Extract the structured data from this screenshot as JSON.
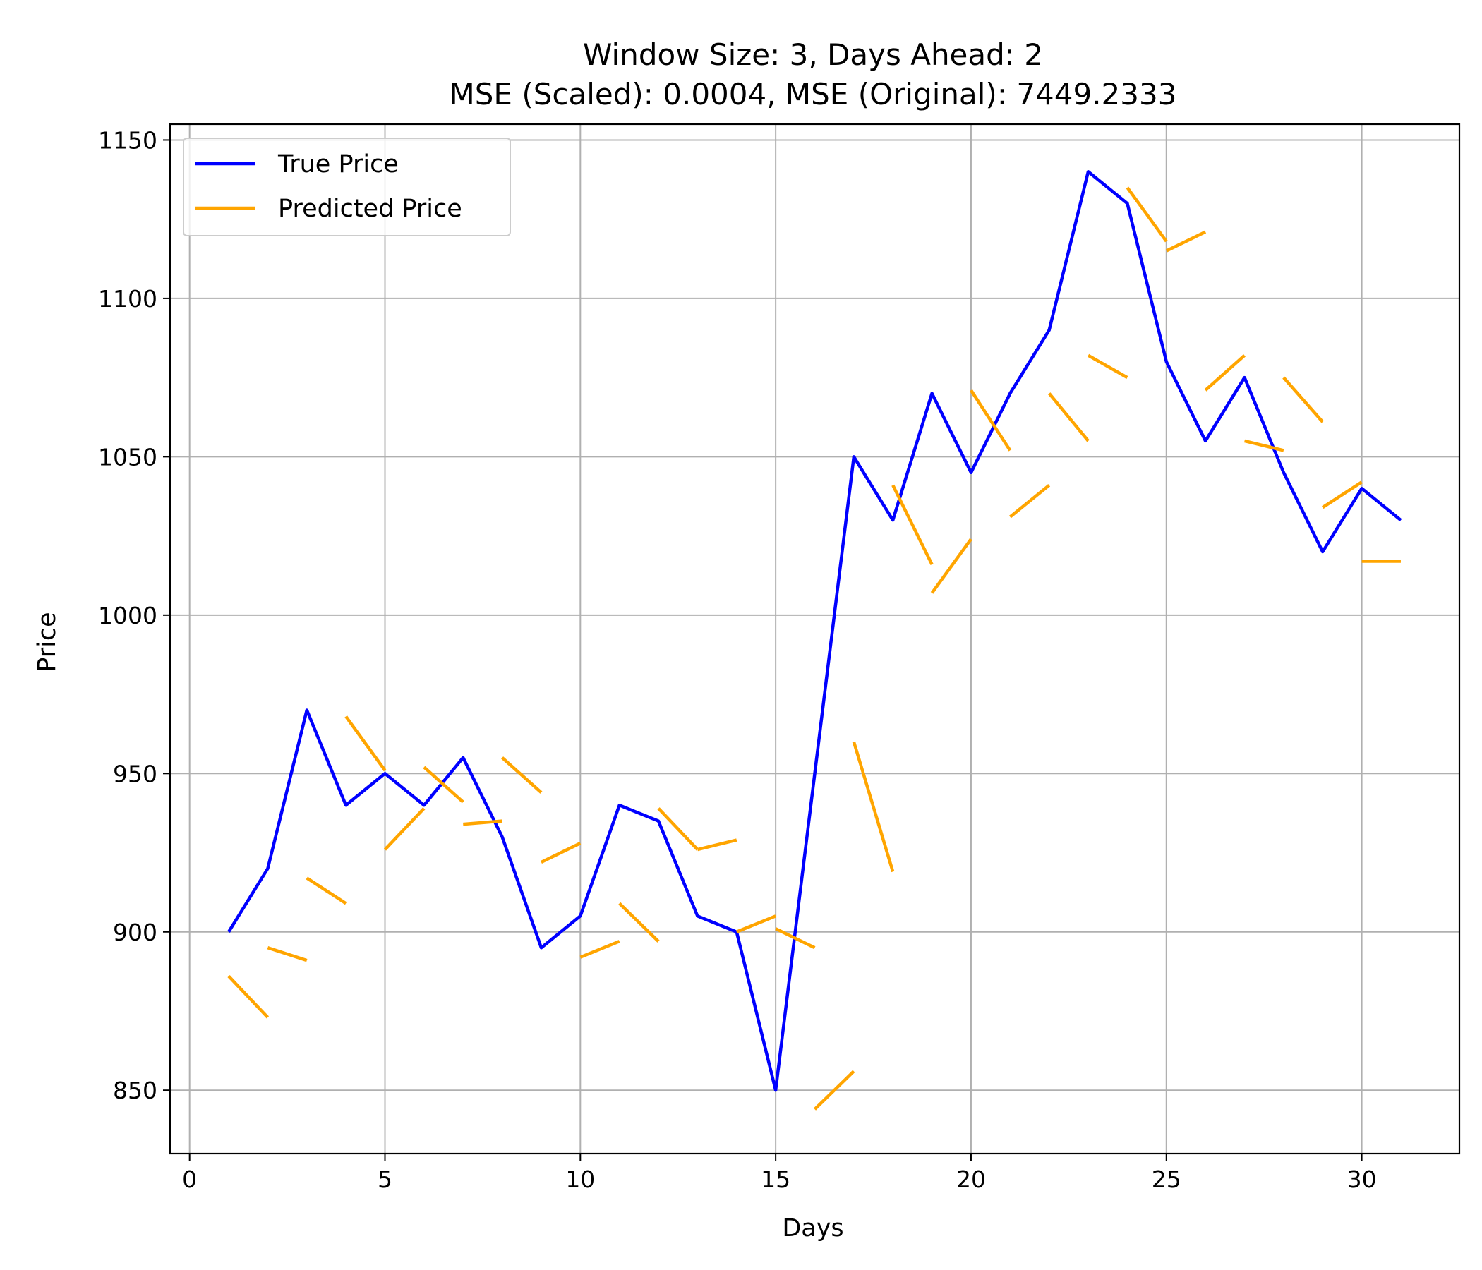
{
  "chart_data": {
    "type": "line",
    "title": "Window Size: 3, Days Ahead: 2",
    "subtitle": "MSE (Scaled): 0.0004, MSE (Original): 7449.2333",
    "xlabel": "Days",
    "ylabel": "Price",
    "xlim": [
      -0.5,
      32.5
    ],
    "ylim": [
      830,
      1155
    ],
    "xticks": [
      0,
      5,
      10,
      15,
      20,
      25,
      30
    ],
    "yticks": [
      850,
      900,
      950,
      1000,
      1050,
      1100,
      1150
    ],
    "grid": true,
    "legend_position": "top-left",
    "series": [
      {
        "name": "True Price",
        "color": "#0000ff",
        "style": "line",
        "x": [
          1,
          2,
          3,
          4,
          5,
          6,
          7,
          8,
          9,
          10,
          11,
          12,
          13,
          14,
          15,
          16,
          17,
          18,
          19,
          20,
          21,
          22,
          23,
          24,
          25,
          26,
          27,
          28,
          29,
          30,
          31
        ],
        "values": [
          900,
          920,
          970,
          940,
          950,
          940,
          955,
          930,
          895,
          905,
          940,
          935,
          905,
          900,
          850,
          950,
          1050,
          1030,
          1070,
          1045,
          1070,
          1090,
          1140,
          1130,
          1080,
          1055,
          1075,
          1045,
          1020,
          1040,
          1030
        ]
      },
      {
        "name": "Predicted Price",
        "color": "#ffa500",
        "style": "segments",
        "segments": [
          {
            "x": [
              1,
              2
            ],
            "y": [
              886,
              873
            ]
          },
          {
            "x": [
              2,
              3
            ],
            "y": [
              895,
              891
            ]
          },
          {
            "x": [
              3,
              4
            ],
            "y": [
              917,
              909
            ]
          },
          {
            "x": [
              4,
              5
            ],
            "y": [
              968,
              951
            ]
          },
          {
            "x": [
              5,
              6
            ],
            "y": [
              926,
              939
            ]
          },
          {
            "x": [
              6,
              7
            ],
            "y": [
              952,
              941
            ]
          },
          {
            "x": [
              7,
              8
            ],
            "y": [
              934,
              935
            ]
          },
          {
            "x": [
              8,
              9
            ],
            "y": [
              955,
              944
            ]
          },
          {
            "x": [
              9,
              10
            ],
            "y": [
              922,
              928
            ]
          },
          {
            "x": [
              10,
              11
            ],
            "y": [
              892,
              897
            ]
          },
          {
            "x": [
              11,
              12
            ],
            "y": [
              909,
              897
            ]
          },
          {
            "x": [
              12,
              13
            ],
            "y": [
              939,
              926
            ]
          },
          {
            "x": [
              13,
              14
            ],
            "y": [
              926,
              929
            ]
          },
          {
            "x": [
              14,
              15
            ],
            "y": [
              900,
              905
            ]
          },
          {
            "x": [
              15,
              16
            ],
            "y": [
              901,
              895
            ]
          },
          {
            "x": [
              16,
              17
            ],
            "y": [
              844,
              856
            ]
          },
          {
            "x": [
              17,
              18
            ],
            "y": [
              960,
              919
            ]
          },
          {
            "x": [
              18,
              19
            ],
            "y": [
              1041,
              1016
            ]
          },
          {
            "x": [
              19,
              20
            ],
            "y": [
              1007,
              1024
            ]
          },
          {
            "x": [
              20,
              21
            ],
            "y": [
              1071,
              1052
            ]
          },
          {
            "x": [
              21,
              22
            ],
            "y": [
              1031,
              1041
            ]
          },
          {
            "x": [
              22,
              23
            ],
            "y": [
              1070,
              1055
            ]
          },
          {
            "x": [
              23,
              24
            ],
            "y": [
              1082,
              1075
            ]
          },
          {
            "x": [
              24,
              25
            ],
            "y": [
              1135,
              1118
            ]
          },
          {
            "x": [
              25,
              26
            ],
            "y": [
              1115,
              1121
            ]
          },
          {
            "x": [
              26,
              27
            ],
            "y": [
              1071,
              1082
            ]
          },
          {
            "x": [
              27,
              28
            ],
            "y": [
              1055,
              1052
            ]
          },
          {
            "x": [
              28,
              29
            ],
            "y": [
              1075,
              1061
            ]
          },
          {
            "x": [
              29,
              30
            ],
            "y": [
              1034,
              1042
            ]
          },
          {
            "x": [
              30,
              31
            ],
            "y": [
              1017,
              1017
            ]
          }
        ]
      }
    ]
  }
}
